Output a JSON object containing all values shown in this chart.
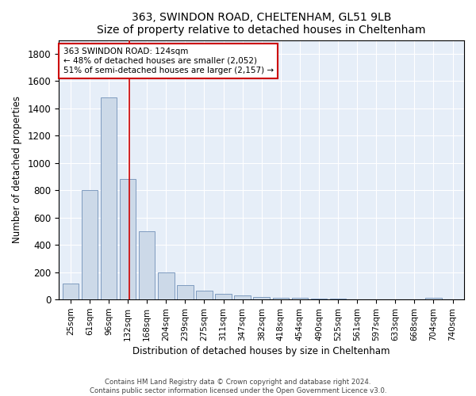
{
  "title": "363, SWINDON ROAD, CHELTENHAM, GL51 9LB",
  "subtitle": "Size of property relative to detached houses in Cheltenham",
  "xlabel": "Distribution of detached houses by size in Cheltenham",
  "ylabel": "Number of detached properties",
  "footer_line1": "Contains HM Land Registry data © Crown copyright and database right 2024.",
  "footer_line2": "Contains public sector information licensed under the Open Government Licence v3.0.",
  "bar_labels": [
    "25sqm",
    "61sqm",
    "96sqm",
    "132sqm",
    "168sqm",
    "204sqm",
    "239sqm",
    "275sqm",
    "311sqm",
    "347sqm",
    "382sqm",
    "418sqm",
    "454sqm",
    "490sqm",
    "525sqm",
    "561sqm",
    "597sqm",
    "633sqm",
    "668sqm",
    "704sqm",
    "740sqm"
  ],
  "bar_values": [
    120,
    800,
    1480,
    880,
    500,
    200,
    105,
    65,
    40,
    30,
    20,
    15,
    10,
    5,
    5,
    3,
    3,
    2,
    2,
    15,
    2
  ],
  "bar_color": "#ccd9e8",
  "bar_edge_color": "#7090b8",
  "ylim": [
    0,
    1900
  ],
  "yticks": [
    0,
    200,
    400,
    600,
    800,
    1000,
    1200,
    1400,
    1600,
    1800
  ],
  "property_label": "363 SWINDON ROAD: 124sqm",
  "annotation_line1": "← 48% of detached houses are smaller (2,052)",
  "annotation_line2": "51% of semi-detached houses are larger (2,157) →",
  "red_line_color": "#cc0000",
  "plot_bg_color": "#e6eef8"
}
